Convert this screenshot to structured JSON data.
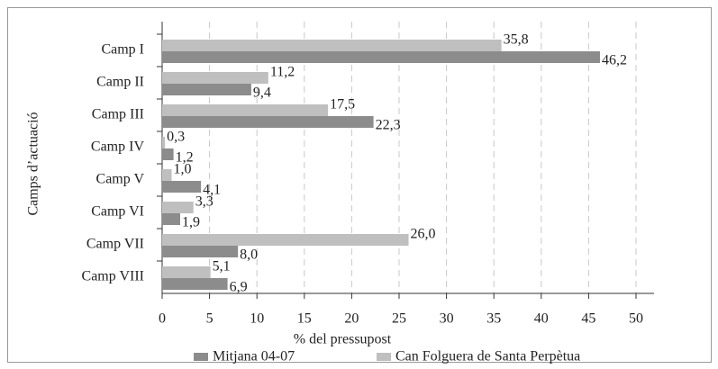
{
  "chart_data": {
    "type": "hbar",
    "x_label": "% del pressupost",
    "y_label": "Camps d’actuació",
    "categories": [
      "Camp I",
      "Camp II",
      "Camp III",
      "Camp IV",
      "Camp V",
      "Camp VI",
      "Camp VII",
      "Camp VIII"
    ],
    "series": [
      {
        "name": "Mitjana 04-07",
        "color": "#8c8c8c",
        "values": [
          46.2,
          9.4,
          22.3,
          1.2,
          4.1,
          1.9,
          8.0,
          6.9
        ],
        "value_labels": [
          "46,2",
          "9,4",
          "22,3",
          "1,2",
          "4,1",
          "1,9",
          "8,0",
          "6,9"
        ]
      },
      {
        "name": "Can Folguera de Santa Perpètua",
        "color": "#bfbfbf",
        "values": [
          35.8,
          11.2,
          17.5,
          0.3,
          1.0,
          3.3,
          26.0,
          5.1
        ],
        "value_labels": [
          "35,8",
          "11,2",
          "17,5",
          "0,3",
          "1,0",
          "3,3",
          "26,0",
          "5,1"
        ]
      }
    ],
    "xlim": [
      0,
      50
    ],
    "xticks": [
      0,
      5,
      10,
      15,
      20,
      25,
      30,
      35,
      40,
      45,
      50
    ],
    "grid": true
  }
}
